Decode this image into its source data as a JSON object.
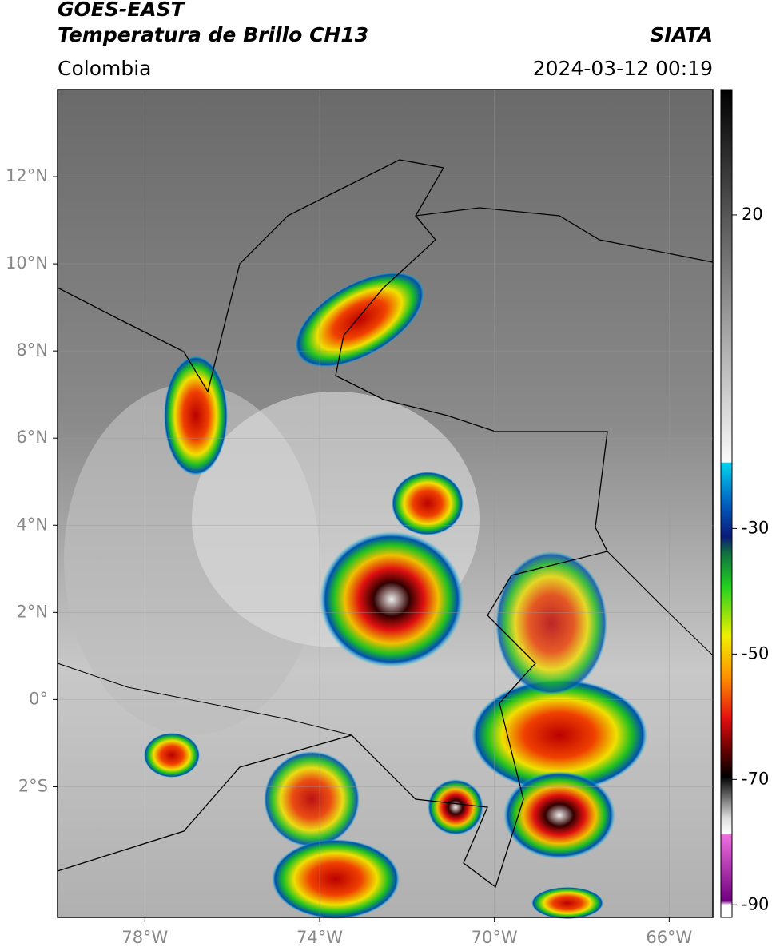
{
  "header": {
    "title_line1": "GOES-EAST",
    "title_line2": "Temperatura de Brillo CH13",
    "source": "SIATA",
    "region": "Colombia",
    "timestamp": "2024-03-12 00:19"
  },
  "map": {
    "xlim": [
      -80,
      -65
    ],
    "ylim": [
      -5,
      14
    ],
    "xticks": [
      {
        "value": -78,
        "label": "78°W"
      },
      {
        "value": -74,
        "label": "74°W"
      },
      {
        "value": -70,
        "label": "70°W"
      },
      {
        "value": -66,
        "label": "66°W"
      }
    ],
    "yticks": [
      {
        "value": 12,
        "label": "12°N"
      },
      {
        "value": 10,
        "label": "10°N"
      },
      {
        "value": 8,
        "label": "8°N"
      },
      {
        "value": 6,
        "label": "6°N"
      },
      {
        "value": 4,
        "label": "4°N"
      },
      {
        "value": 2,
        "label": "2°N"
      },
      {
        "value": 0,
        "label": "0°"
      },
      {
        "value": -2,
        "label": "2°S"
      }
    ],
    "grid": true
  },
  "colorbar": {
    "lim": [
      -92,
      40
    ],
    "ticks": [
      20,
      -30,
      -50,
      -70,
      -90
    ]
  }
}
